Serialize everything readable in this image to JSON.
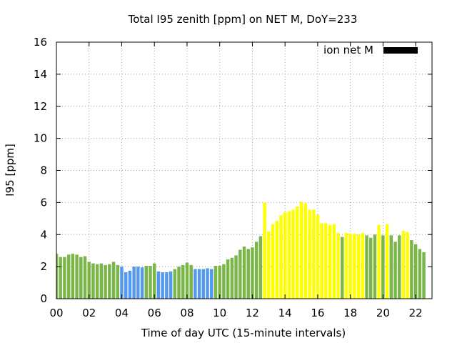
{
  "chart_data": {
    "type": "bar",
    "title": "Total I95 zenith [ppm] on NET M, DoY=233",
    "xlabel": "Time of day UTC (15-minute intervals)",
    "ylabel": "I95 [ppm]",
    "xlim": [
      0,
      23
    ],
    "ylim": [
      0,
      16
    ],
    "y_ticks": [
      0,
      2,
      4,
      6,
      8,
      10,
      12,
      14,
      16
    ],
    "x_ticks": [
      {
        "value": 0,
        "label": "00"
      },
      {
        "value": 2,
        "label": "02"
      },
      {
        "value": 4,
        "label": "04"
      },
      {
        "value": 6,
        "label": "06"
      },
      {
        "value": 8,
        "label": "08"
      },
      {
        "value": 10,
        "label": "10"
      },
      {
        "value": 12,
        "label": "12"
      },
      {
        "value": 14,
        "label": "14"
      },
      {
        "value": 16,
        "label": "16"
      },
      {
        "value": 18,
        "label": "18"
      },
      {
        "value": 20,
        "label": "20"
      },
      {
        "value": 22,
        "label": "22"
      }
    ],
    "grid": true,
    "legend": {
      "label": "ion net M",
      "position": "top-right",
      "color": "#000000"
    },
    "interval_hours": 0.25,
    "colors": {
      "G": "#7ab648",
      "B": "#5599ee",
      "Y": "#ffff00"
    },
    "values": [
      2.8,
      2.6,
      2.6,
      2.75,
      2.8,
      2.75,
      2.6,
      2.65,
      2.3,
      2.2,
      2.15,
      2.2,
      2.1,
      2.15,
      2.3,
      2.1,
      2.0,
      1.65,
      1.75,
      2.0,
      2.0,
      1.95,
      2.05,
      2.05,
      2.2,
      1.7,
      1.65,
      1.65,
      1.7,
      1.85,
      2.0,
      2.1,
      2.25,
      2.1,
      1.85,
      1.85,
      1.85,
      1.9,
      1.85,
      2.05,
      2.05,
      2.15,
      2.45,
      2.55,
      2.7,
      3.05,
      3.25,
      3.1,
      3.2,
      3.55,
      3.9,
      6.0,
      4.2,
      4.65,
      4.85,
      5.2,
      5.4,
      5.45,
      5.55,
      5.75,
      6.05,
      5.95,
      5.55,
      5.55,
      5.25,
      4.7,
      4.7,
      4.6,
      4.65,
      4.1,
      3.85,
      4.1,
      4.05,
      4.05,
      4.0,
      4.1,
      3.95,
      3.8,
      4.0,
      4.6,
      3.95,
      4.65,
      3.95,
      3.55,
      3.95,
      4.25,
      4.15,
      3.65,
      3.4,
      3.1,
      2.9
    ],
    "bar_colors": [
      "G",
      "G",
      "G",
      "G",
      "G",
      "G",
      "G",
      "G",
      "G",
      "G",
      "G",
      "G",
      "G",
      "G",
      "G",
      "G",
      "B",
      "B",
      "B",
      "B",
      "B",
      "B",
      "G",
      "G",
      "G",
      "B",
      "B",
      "B",
      "B",
      "G",
      "G",
      "G",
      "G",
      "G",
      "B",
      "B",
      "B",
      "B",
      "B",
      "G",
      "G",
      "G",
      "G",
      "G",
      "G",
      "G",
      "G",
      "G",
      "G",
      "G",
      "G",
      "Y",
      "Y",
      "Y",
      "Y",
      "Y",
      "Y",
      "Y",
      "Y",
      "Y",
      "Y",
      "Y",
      "Y",
      "Y",
      "Y",
      "Y",
      "Y",
      "Y",
      "Y",
      "Y",
      "G",
      "Y",
      "Y",
      "Y",
      "Y",
      "Y",
      "G",
      "G",
      "G",
      "Y",
      "G",
      "Y",
      "G",
      "G",
      "G",
      "Y",
      "Y",
      "G",
      "G",
      "G",
      "G"
    ]
  }
}
